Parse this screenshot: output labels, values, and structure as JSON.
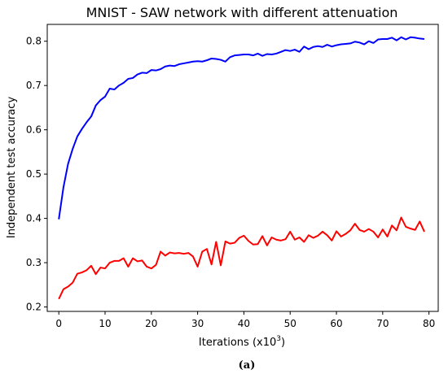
{
  "chart_data": {
    "type": "line",
    "title": "MNIST - SAW network with different attenuation",
    "xlabel": "Iterations (x10",
    "xlabel_exp": "3",
    "xlabel_close": ")",
    "ylabel": "Independent test accuracy",
    "caption": "(a)",
    "xlim": [
      -2.5,
      82
    ],
    "ylim": [
      0.19,
      0.838
    ],
    "xticks": [
      0,
      10,
      20,
      30,
      40,
      50,
      60,
      70,
      80
    ],
    "yticks": [
      0.2,
      0.3,
      0.4,
      0.5,
      0.6,
      0.7,
      0.8
    ],
    "grid": false,
    "x": [
      0,
      1,
      2,
      3,
      4,
      5,
      6,
      7,
      8,
      9,
      10,
      11,
      12,
      13,
      14,
      15,
      16,
      17,
      18,
      19,
      20,
      21,
      22,
      23,
      24,
      25,
      26,
      27,
      28,
      29,
      30,
      31,
      32,
      33,
      34,
      35,
      36,
      37,
      38,
      39,
      40,
      41,
      42,
      43,
      44,
      45,
      46,
      47,
      48,
      49,
      50,
      51,
      52,
      53,
      54,
      55,
      56,
      57,
      58,
      59,
      60,
      61,
      62,
      63,
      64,
      65,
      66,
      67,
      68,
      69,
      70,
      71,
      72,
      73,
      74,
      75,
      76,
      77,
      78,
      79
    ],
    "series": [
      {
        "color": "#0000ff",
        "values": [
          0.398,
          0.47,
          0.523,
          0.557,
          0.585,
          0.602,
          0.617,
          0.63,
          0.655,
          0.667,
          0.675,
          0.693,
          0.691,
          0.7,
          0.706,
          0.715,
          0.717,
          0.725,
          0.729,
          0.728,
          0.735,
          0.734,
          0.737,
          0.743,
          0.745,
          0.744,
          0.748,
          0.75,
          0.752,
          0.754,
          0.755,
          0.754,
          0.757,
          0.761,
          0.76,
          0.758,
          0.754,
          0.764,
          0.768,
          0.769,
          0.77,
          0.77,
          0.768,
          0.772,
          0.767,
          0.771,
          0.77,
          0.772,
          0.776,
          0.78,
          0.778,
          0.781,
          0.776,
          0.788,
          0.782,
          0.787,
          0.789,
          0.787,
          0.792,
          0.788,
          0.791,
          0.793,
          0.794,
          0.795,
          0.799,
          0.797,
          0.793,
          0.8,
          0.796,
          0.804,
          0.805,
          0.805,
          0.808,
          0.802,
          0.809,
          0.804,
          0.809,
          0.808,
          0.806,
          0.805
        ]
      },
      {
        "color": "#ff0000",
        "values": [
          0.218,
          0.24,
          0.246,
          0.255,
          0.275,
          0.278,
          0.283,
          0.293,
          0.274,
          0.289,
          0.287,
          0.3,
          0.304,
          0.304,
          0.31,
          0.291,
          0.31,
          0.303,
          0.305,
          0.291,
          0.287,
          0.295,
          0.325,
          0.316,
          0.323,
          0.321,
          0.322,
          0.32,
          0.322,
          0.314,
          0.291,
          0.325,
          0.331,
          0.296,
          0.347,
          0.294,
          0.348,
          0.343,
          0.345,
          0.356,
          0.361,
          0.349,
          0.341,
          0.342,
          0.36,
          0.339,
          0.357,
          0.352,
          0.35,
          0.353,
          0.37,
          0.352,
          0.357,
          0.347,
          0.362,
          0.356,
          0.361,
          0.37,
          0.362,
          0.35,
          0.371,
          0.359,
          0.365,
          0.373,
          0.388,
          0.374,
          0.37,
          0.376,
          0.37,
          0.357,
          0.375,
          0.359,
          0.384,
          0.373,
          0.402,
          0.381,
          0.377,
          0.374,
          0.393,
          0.37
        ]
      }
    ]
  }
}
